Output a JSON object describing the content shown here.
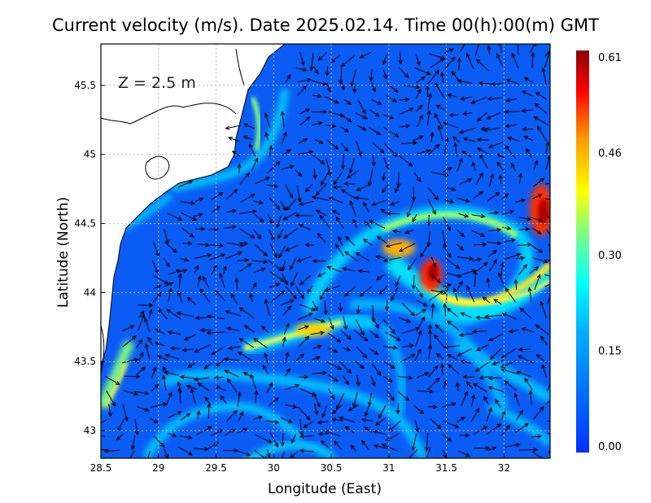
{
  "title": "Current velocity (m/s). Date 2025.02.14. Time 00(h):00(m) GMT",
  "depth_label": "Z = 2.5 m",
  "xlabel": "Longitude (East)",
  "ylabel": "Latitude (North)",
  "x_ticks": [
    "28.5",
    "29",
    "29.5",
    "30",
    "30.5",
    "31",
    "31.5",
    "32"
  ],
  "y_ticks": [
    "45.5",
    "45",
    "44.5",
    "44",
    "43.5",
    "43"
  ],
  "colorbar": {
    "labels": [
      "0.61",
      "0.46",
      "0.30",
      "0.15",
      "0.00"
    ],
    "values": [
      0.61,
      0.46,
      0.3,
      0.15,
      0.0
    ],
    "colors": [
      "#8b0000",
      "#ff0000",
      "#ff8c00",
      "#ffff00",
      "#00ffff",
      "#1e90ff",
      "#0000ff"
    ]
  },
  "chart_data": {
    "type": "heatmap",
    "title": "Current velocity (m/s). Date 2025.02.14. Time 00(h):00(m) GMT",
    "xlabel": "Longitude (East)",
    "ylabel": "Latitude (North)",
    "xlim": [
      28.5,
      32.4
    ],
    "ylim": [
      42.8,
      45.8
    ],
    "color_range": [
      0.0,
      0.61
    ],
    "grid": true,
    "variable": "current velocity (m/s) with direction arrows",
    "hotspots": [
      {
        "lon": 32.35,
        "lat": 44.6,
        "speed": 0.6
      },
      {
        "lon": 31.35,
        "lat": 44.15,
        "speed": 0.58
      },
      {
        "lon": 30.9,
        "lat": 44.3,
        "speed": 0.45
      },
      {
        "lon": 30.3,
        "lat": 43.7,
        "speed": 0.4
      },
      {
        "lon": 31.9,
        "lat": 44.0,
        "speed": 0.4
      }
    ]
  }
}
